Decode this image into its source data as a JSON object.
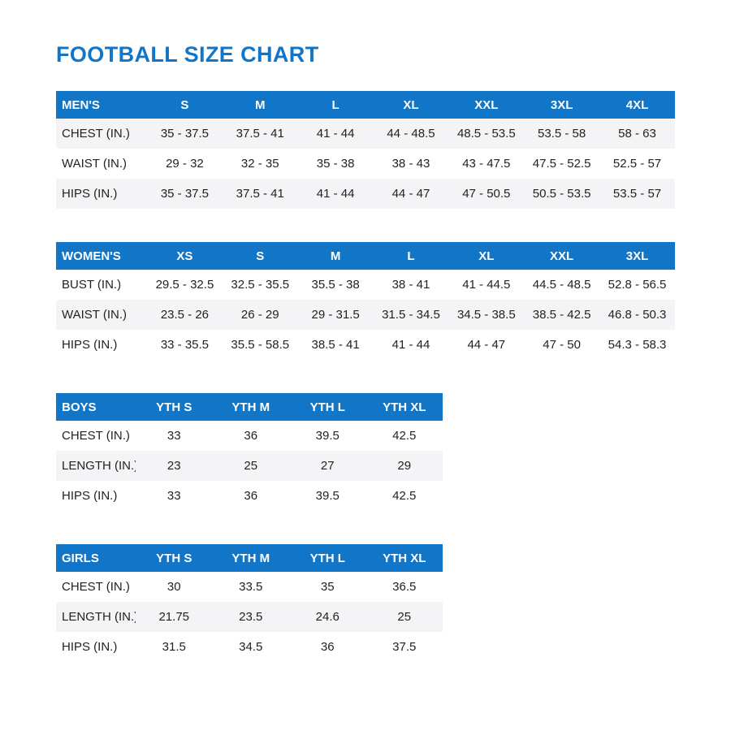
{
  "title": "FOOTBALL SIZE CHART",
  "colors": {
    "accent_blue": "#1175c8",
    "stripe_gray": "#f4f4f6",
    "body_text": "#222222",
    "header_text": "#ffffff"
  },
  "tables": [
    {
      "id": "mens",
      "layout": "wide",
      "header": [
        "MEN'S",
        "S",
        "M",
        "L",
        "XL",
        "XXL",
        "3XL",
        "4XL"
      ],
      "rows": [
        {
          "label": "CHEST (IN.)",
          "shaded": true,
          "values": [
            "35 - 37.5",
            "37.5 - 41",
            "41 - 44",
            "44 - 48.5",
            "48.5 - 53.5",
            "53.5 - 58",
            "58 - 63"
          ]
        },
        {
          "label": "WAIST (IN.)",
          "shaded": false,
          "values": [
            "29 - 32",
            "32 - 35",
            "35 - 38",
            "38 - 43",
            "43 - 47.5",
            "47.5 - 52.5",
            "52.5 - 57"
          ]
        },
        {
          "label": "HIPS (IN.)",
          "shaded": true,
          "values": [
            "35 - 37.5",
            "37.5 - 41",
            "41 - 44",
            "44 - 47",
            "47 - 50.5",
            "50.5 - 53.5",
            "53.5 - 57"
          ]
        }
      ]
    },
    {
      "id": "womens",
      "layout": "wide",
      "header": [
        "WOMEN'S",
        "XS",
        "S",
        "M",
        "L",
        "XL",
        "XXL",
        "3XL"
      ],
      "rows": [
        {
          "label": "BUST (IN.)",
          "shaded": false,
          "values": [
            "29.5 - 32.5",
            "32.5 - 35.5",
            "35.5 - 38",
            "38 - 41",
            "41 - 44.5",
            "44.5 - 48.5",
            "52.8 - 56.5"
          ]
        },
        {
          "label": "WAIST (IN.)",
          "shaded": true,
          "values": [
            "23.5 - 26",
            "26 - 29",
            "29 - 31.5",
            "31.5 - 34.5",
            "34.5 - 38.5",
            "38.5 - 42.5",
            "46.8 - 50.3"
          ]
        },
        {
          "label": "HIPS (IN.)",
          "shaded": false,
          "values": [
            "33 - 35.5",
            "35.5 - 58.5",
            "38.5 - 41",
            "41 - 44",
            "44 - 47",
            "47 - 50",
            "54.3 - 58.3"
          ]
        }
      ]
    },
    {
      "id": "boys",
      "layout": "narrow",
      "header": [
        "BOYS",
        "YTH S",
        "YTH M",
        "YTH L",
        "YTH XL"
      ],
      "rows": [
        {
          "label": "CHEST (IN.)",
          "shaded": false,
          "values": [
            "33",
            "36",
            "39.5",
            "42.5"
          ]
        },
        {
          "label": "LENGTH (IN.)",
          "shaded": true,
          "values": [
            "23",
            "25",
            "27",
            "29"
          ]
        },
        {
          "label": "HIPS (IN.)",
          "shaded": false,
          "values": [
            "33",
            "36",
            "39.5",
            "42.5"
          ]
        }
      ]
    },
    {
      "id": "girls",
      "layout": "narrow",
      "header": [
        "GIRLS",
        "YTH S",
        "YTH M",
        "YTH L",
        "YTH XL"
      ],
      "rows": [
        {
          "label": "CHEST (IN.)",
          "shaded": false,
          "values": [
            "30",
            "33.5",
            "35",
            "36.5"
          ]
        },
        {
          "label": "LENGTH (IN.)",
          "shaded": true,
          "values": [
            "21.75",
            "23.5",
            "24.6",
            "25"
          ]
        },
        {
          "label": "HIPS (IN.)",
          "shaded": false,
          "values": [
            "31.5",
            "34.5",
            "36",
            "37.5"
          ]
        }
      ]
    }
  ]
}
